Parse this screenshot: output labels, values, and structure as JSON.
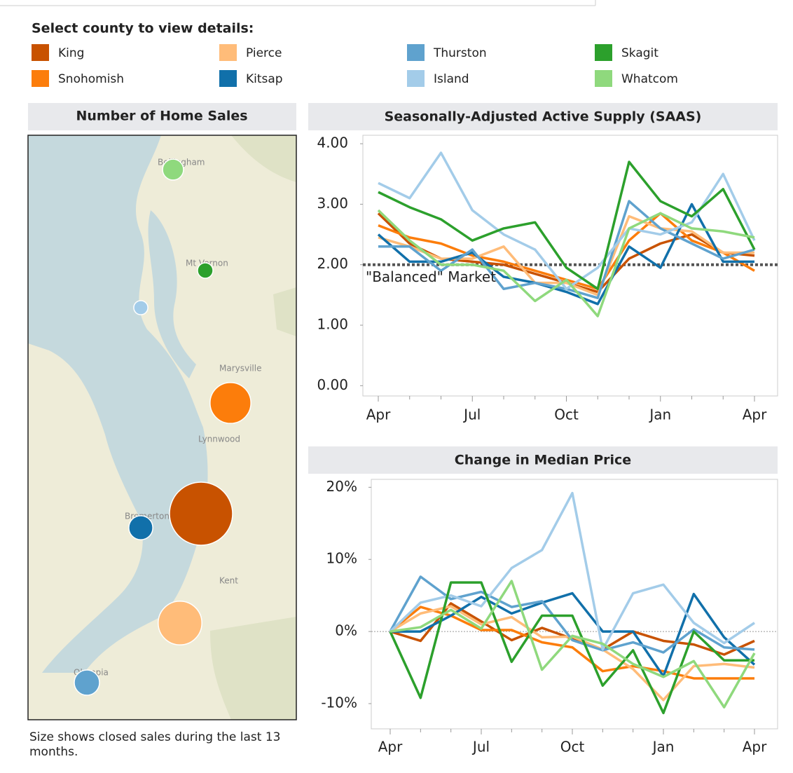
{
  "legend": {
    "title": "Select county to view details:"
  },
  "map": {
    "title": "Number of Home Sales",
    "places": [
      "Bellingham",
      "Mt Vernon",
      "Marysville",
      "Lynnwood",
      "Bremerton",
      "Kent",
      "Olympia"
    ],
    "sales": [
      2000,
      840,
      960,
      290,
      320,
      100,
      120,
      220
    ],
    "footnote": "Size shows closed sales during the last 13 months."
  },
  "chart_data": [
    {
      "type": "line",
      "title": "Seasonally-Adjusted Active Supply (SAAS)",
      "categories": [
        "Apr",
        null,
        null,
        "Jul",
        null,
        null,
        "Oct",
        null,
        null,
        "Jan",
        null,
        null,
        "Apr"
      ],
      "ylim": [
        -0.17,
        4.14
      ],
      "yticks": [
        {
          "value": 0,
          "label": "0.00"
        },
        {
          "value": 1,
          "label": "1.00"
        },
        {
          "value": 2,
          "label": "2.00"
        },
        {
          "value": 3,
          "label": "3.00"
        },
        {
          "value": 4,
          "label": "4.00"
        }
      ],
      "reference": 2,
      "annotation": "\"Balanced\" Market",
      "series": [
        {
          "name": "King",
          "color": "#c85200",
          "values": [
            2.85,
            2.35,
            2.1,
            2.05,
            2.0,
            1.85,
            1.7,
            1.55,
            2.1,
            2.35,
            2.5,
            2.2,
            2.15
          ]
        },
        {
          "name": "Snohomish",
          "color": "#fc7d0b",
          "values": [
            2.65,
            2.45,
            2.35,
            2.15,
            2.05,
            1.9,
            1.75,
            1.6,
            2.4,
            2.85,
            2.4,
            2.2,
            1.9
          ]
        },
        {
          "name": "Pierce",
          "color": "#ffbc79",
          "values": [
            2.45,
            2.3,
            2.1,
            2.1,
            2.3,
            1.7,
            1.7,
            1.5,
            2.8,
            2.6,
            2.55,
            2.2,
            2.2
          ]
        },
        {
          "name": "Kitsap",
          "color": "#1170aa",
          "values": [
            2.5,
            2.05,
            2.05,
            2.2,
            1.8,
            1.7,
            1.55,
            1.35,
            2.3,
            1.95,
            3.0,
            2.05,
            2.05
          ]
        },
        {
          "name": "Thurston",
          "color": "#5fa2ce",
          "values": [
            2.3,
            2.3,
            1.9,
            2.25,
            1.6,
            1.7,
            1.6,
            1.45,
            3.05,
            2.6,
            2.35,
            2.1,
            2.25
          ]
        },
        {
          "name": "Island",
          "color": "#a3cce9",
          "values": [
            3.35,
            3.1,
            3.85,
            2.9,
            2.5,
            2.25,
            1.6,
            1.95,
            2.6,
            2.5,
            2.7,
            3.5,
            2.4
          ]
        },
        {
          "name": "Skagit",
          "color": "#2ca02c",
          "values": [
            3.2,
            2.95,
            2.75,
            2.4,
            2.6,
            2.7,
            1.95,
            1.6,
            3.7,
            3.05,
            2.8,
            3.25,
            2.25
          ]
        },
        {
          "name": "Whatcom",
          "color": "#8fd97d",
          "values": [
            2.9,
            2.4,
            2.0,
            2.0,
            1.9,
            1.4,
            1.75,
            1.15,
            2.6,
            2.85,
            2.6,
            2.55,
            2.45
          ]
        }
      ]
    },
    {
      "type": "line",
      "title": "Change in Median Price",
      "categories": [
        "Apr",
        null,
        null,
        "Jul",
        null,
        null,
        "Oct",
        null,
        null,
        "Jan",
        null,
        null,
        "Apr"
      ],
      "ylim": [
        -13.5,
        21.1
      ],
      "yticks": [
        {
          "value": -10,
          "label": "-10%"
        },
        {
          "value": 0,
          "label": "0%"
        },
        {
          "value": 10,
          "label": "10%"
        },
        {
          "value": 20,
          "label": "20%"
        }
      ],
      "reference": 0,
      "series": [
        {
          "name": "King",
          "color": "#c85200",
          "values": [
            0,
            -1.3,
            3.9,
            1.4,
            -1.2,
            0.5,
            -1,
            -2.5,
            0,
            -1.3,
            -1.8,
            -3.2,
            -1.3
          ]
        },
        {
          "name": "Snohomish",
          "color": "#fc7d0b",
          "values": [
            0,
            3.4,
            2.2,
            0.2,
            0.2,
            -1.5,
            -2.2,
            -5.5,
            -4.8,
            -5.5,
            -6.5,
            -6.5,
            -6.5
          ]
        },
        {
          "name": "Pierce",
          "color": "#ffbc79",
          "values": [
            0,
            2.5,
            3.5,
            1,
            2.0,
            -0.8,
            -0.7,
            -2.5,
            -5.2,
            -9.5,
            -4.8,
            -4.5,
            -5.0
          ]
        },
        {
          "name": "Kitsap",
          "color": "#1170aa",
          "values": [
            0,
            0,
            2.2,
            4.8,
            2.5,
            4.0,
            5.3,
            0,
            0,
            -6.2,
            5.2,
            -0.8,
            -4.6
          ]
        },
        {
          "name": "Thurston",
          "color": "#5fa2ce",
          "values": [
            0,
            7.6,
            4.5,
            5.5,
            3.4,
            4.2,
            -1.2,
            -2.6,
            -1.5,
            -2.9,
            0.3,
            -2.2,
            -2.5
          ]
        },
        {
          "name": "Island",
          "color": "#a3cce9",
          "values": [
            0,
            4,
            5,
            3.5,
            8.8,
            11.3,
            19.2,
            -2.5,
            5.3,
            6.5,
            1.2,
            -1.6,
            1.2
          ]
        },
        {
          "name": "Skagit",
          "color": "#2ca02c",
          "values": [
            0,
            -9.2,
            6.8,
            6.8,
            -4.2,
            2.2,
            2.2,
            -7.5,
            -2.6,
            -11.3,
            0,
            -4,
            -4.0
          ]
        },
        {
          "name": "Whatcom",
          "color": "#8fd97d",
          "values": [
            0,
            0.6,
            3,
            0.4,
            7,
            -5.3,
            -0.6,
            -1.7,
            -4.5,
            -6.3,
            -4.1,
            -10.5,
            -3.0
          ]
        }
      ]
    }
  ]
}
